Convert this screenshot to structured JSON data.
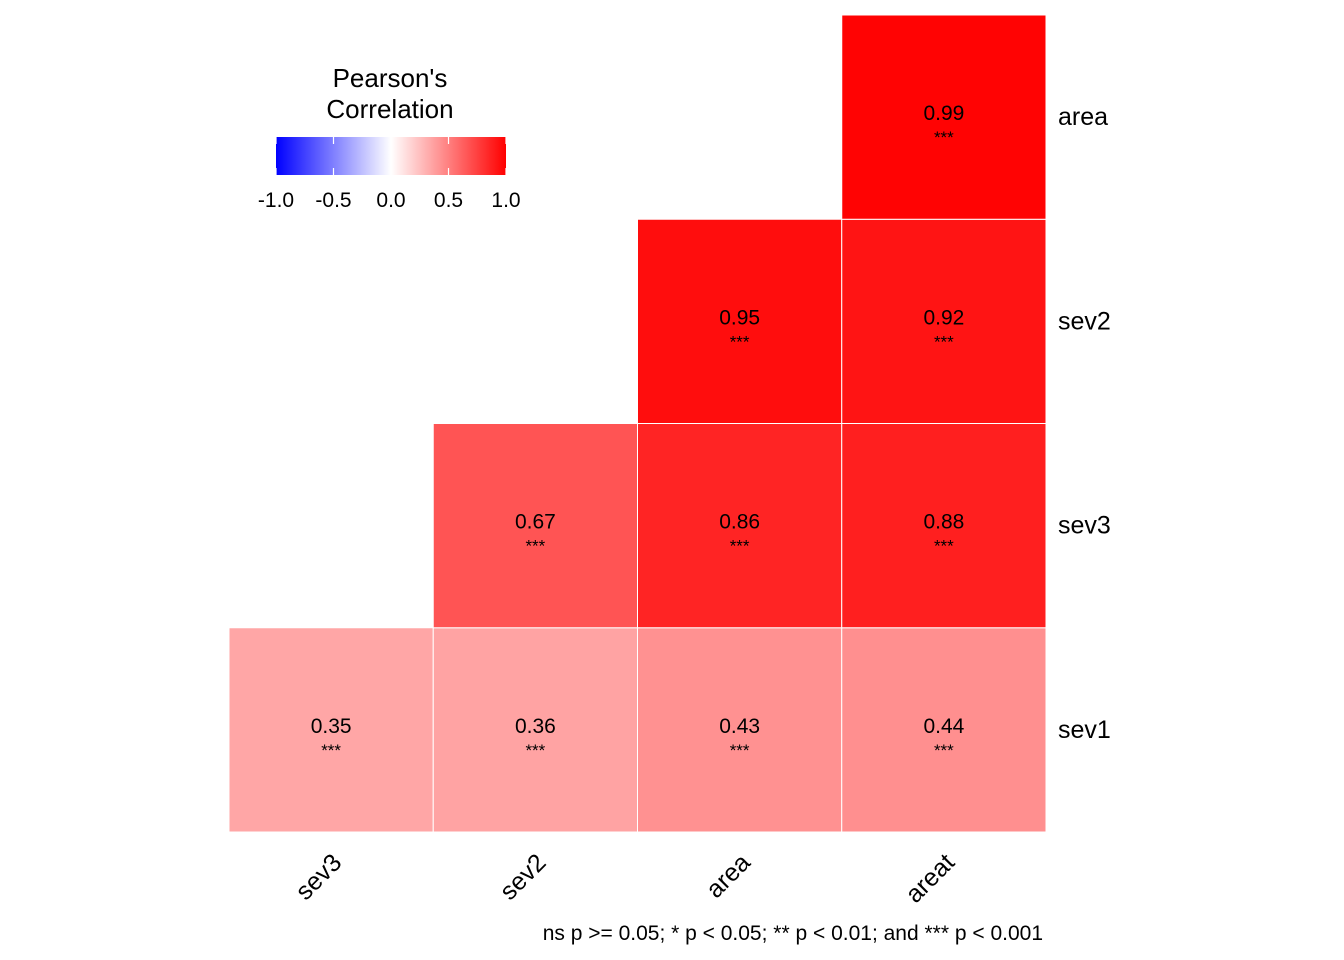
{
  "chart_data": {
    "type": "heatmap",
    "legend": {
      "title_line1": "Pearson's",
      "title_line2": "Correlation",
      "ticks": [
        "-1.0",
        "-0.5",
        "0.0",
        "0.5",
        "1.0"
      ],
      "tick_values": [
        -1.0,
        -0.5,
        0.0,
        0.5,
        1.0
      ],
      "range": [
        -1.0,
        1.0
      ],
      "colors": {
        "low": "#0000ff",
        "mid": "#ffffff",
        "high": "#ff0000"
      },
      "placement": "top-left"
    },
    "x_categories": [
      "sev3",
      "sev2",
      "area",
      "areat"
    ],
    "y_categories": [
      "sev1",
      "sev3",
      "sev2",
      "area"
    ],
    "cells": [
      {
        "x": "sev3",
        "y": "sev1",
        "value": 0.35,
        "label": "0.35",
        "sig": "***"
      },
      {
        "x": "sev2",
        "y": "sev1",
        "value": 0.36,
        "label": "0.36",
        "sig": "***"
      },
      {
        "x": "area",
        "y": "sev1",
        "value": 0.43,
        "label": "0.43",
        "sig": "***"
      },
      {
        "x": "areat",
        "y": "sev1",
        "value": 0.44,
        "label": "0.44",
        "sig": "***"
      },
      {
        "x": "sev2",
        "y": "sev3",
        "value": 0.67,
        "label": "0.67",
        "sig": "***"
      },
      {
        "x": "area",
        "y": "sev3",
        "value": 0.86,
        "label": "0.86",
        "sig": "***"
      },
      {
        "x": "areat",
        "y": "sev3",
        "value": 0.88,
        "label": "0.88",
        "sig": "***"
      },
      {
        "x": "area",
        "y": "sev2",
        "value": 0.95,
        "label": "0.95",
        "sig": "***"
      },
      {
        "x": "areat",
        "y": "sev2",
        "value": 0.92,
        "label": "0.92",
        "sig": "***"
      },
      {
        "x": "areat",
        "y": "area",
        "value": 0.99,
        "label": "0.99",
        "sig": "***"
      }
    ],
    "caption": "ns p >= 0.05; * p < 0.05; ** p < 0.01; and *** p < 0.001"
  }
}
